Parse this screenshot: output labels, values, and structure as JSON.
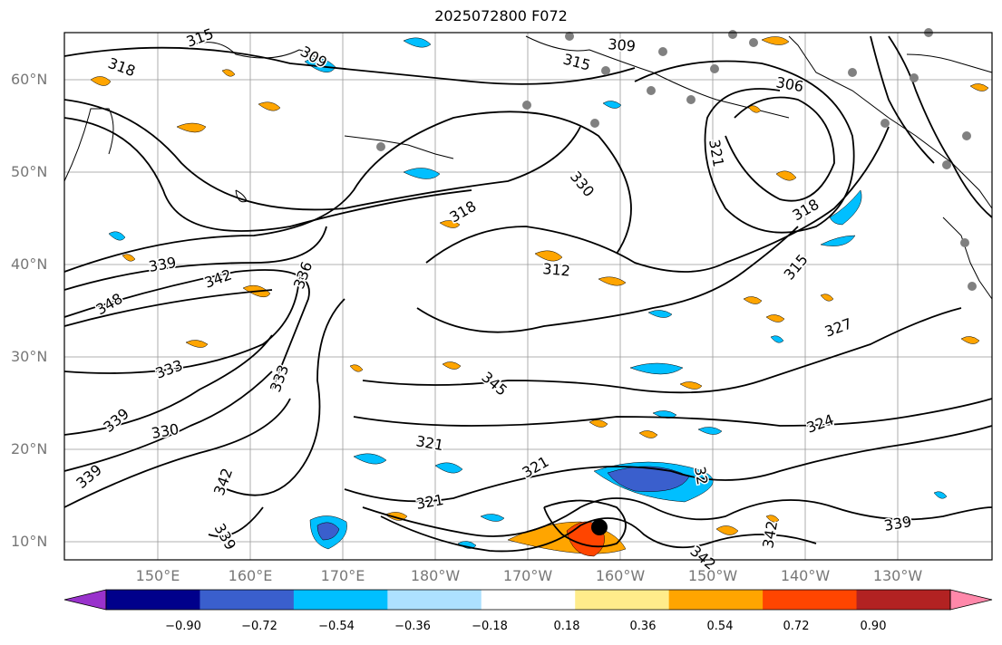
{
  "title": "2025072800 F072",
  "lat_labels": [
    "60°N",
    "50°N",
    "40°N",
    "30°N",
    "20°N",
    "10°N"
  ],
  "lon_labels": [
    "150°E",
    "160°E",
    "170°E",
    "180°W",
    "170°W",
    "160°W",
    "150°W",
    "140°W",
    "130°W"
  ],
  "colorbar": {
    "tick_labels": [
      "−0.90",
      "−0.72",
      "−0.54",
      "−0.36",
      "−0.18",
      "0.18",
      "0.36",
      "0.54",
      "0.72",
      "0.90"
    ],
    "colors": [
      "#9932CC",
      "#00008B",
      "#3A5FCD",
      "#00BFFF",
      "#ADE1FF",
      "#FFFFFF",
      "#FFEC8B",
      "#FFA500",
      "#FF4500",
      "#B22222",
      "#FF88AA"
    ]
  },
  "contour_labels": [
    "318",
    "315",
    "309",
    "315",
    "309",
    "306",
    "321",
    "330",
    "318",
    "312",
    "318",
    "315",
    "327",
    "339",
    "342",
    "336",
    "348",
    "333",
    "333",
    "345",
    "339",
    "330",
    "321",
    "324",
    "321",
    "339",
    "342",
    "339",
    "321",
    "342",
    "342",
    "339",
    "32"
  ],
  "fill_colors": {
    "orange": "#FFA500",
    "sky": "#00BFFF",
    "blue": "#3A5FCD",
    "red": "#FF4500",
    "point": "#808080",
    "center": "#000000"
  }
}
